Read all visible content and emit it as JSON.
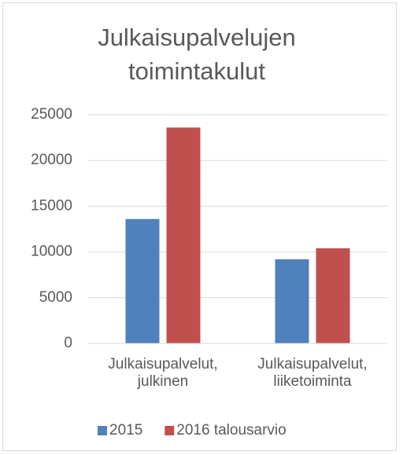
{
  "chart_data": {
    "type": "bar",
    "title": "Julkaisupalvelujen toimintakulut",
    "categories": [
      "Julkaisupalvelut, julkinen",
      "Julkaisupalvelut, liiketoiminta"
    ],
    "series": [
      {
        "name": "2015",
        "color": "#4f81bd",
        "values": [
          13600,
          9200
        ]
      },
      {
        "name": "2016 talousarvio",
        "color": "#c0504d",
        "values": [
          23600,
          10400
        ]
      }
    ],
    "ylim": [
      0,
      25000
    ],
    "yticks": [
      0,
      5000,
      10000,
      15000,
      20000,
      25000
    ],
    "grid": true,
    "legend": "bottom"
  }
}
